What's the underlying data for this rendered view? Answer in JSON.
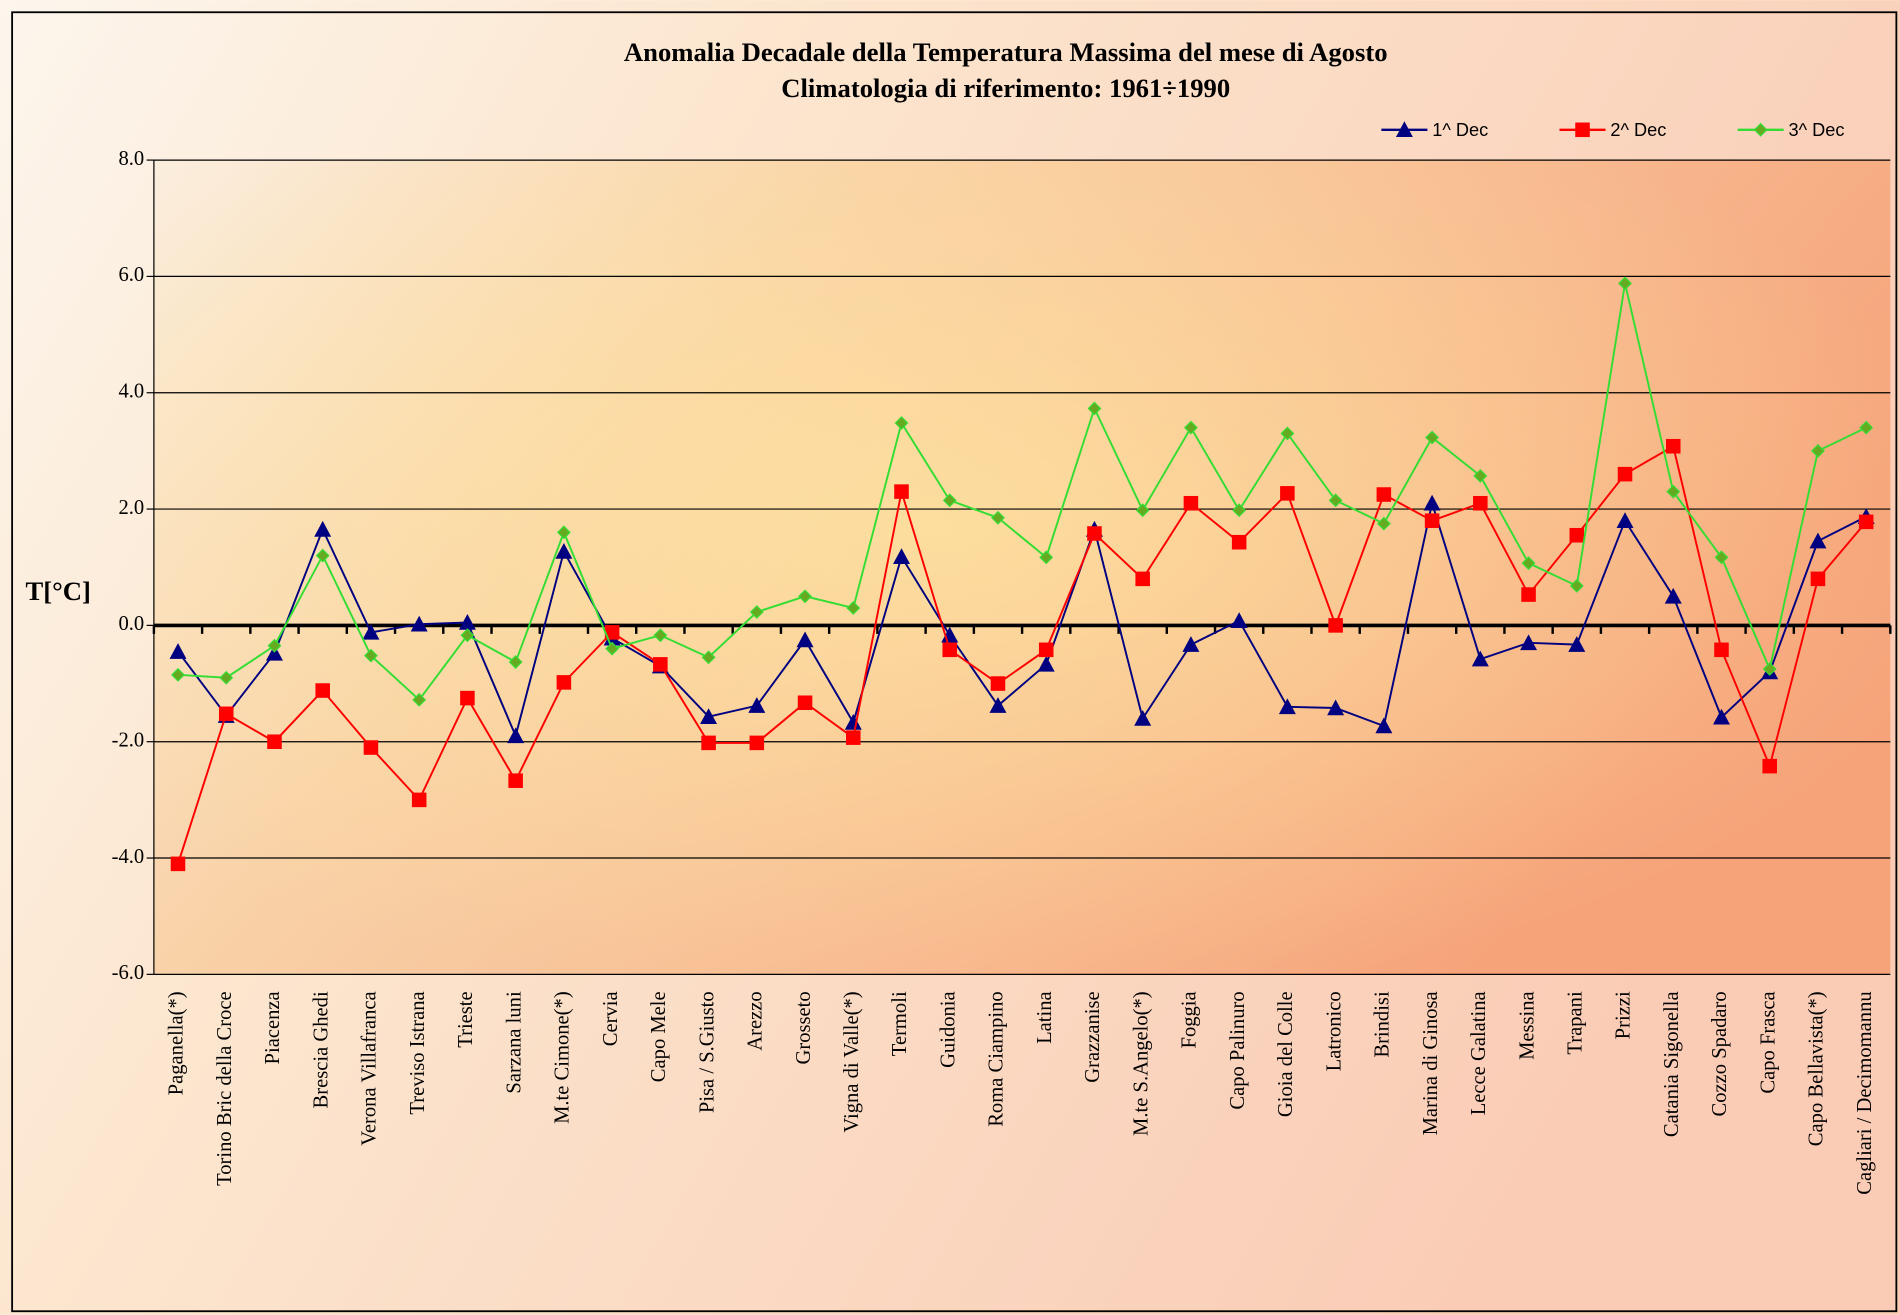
{
  "chart_data": {
    "type": "line",
    "title": "Anomalia Decadale della Temperatura Massima del mese di Agosto",
    "subtitle": "Climatologia di riferimento: 1961÷1990",
    "y_label": "T[°C]",
    "categories": [
      "Paganella(*)",
      "Torino Bric della Croce",
      "Piacenza",
      "Brescia Ghedi",
      "Verona Villafranca",
      "Treviso Istrana",
      "Trieste",
      "Sarzana luni",
      "M.te Cimone(*)",
      "Cervia",
      "Capo Mele",
      "Pisa / S.Giusto",
      "Arezzo",
      "Grosseto",
      "Vigna di Valle(*)",
      "Termoli",
      "Guidonia",
      "Roma Ciampino",
      "Latina",
      "Grazzanise",
      "M.te S.Angelo(*)",
      "Foggia",
      "Capo Palinuro",
      "Gioia del Colle",
      "Latronico",
      "Brindisi",
      "Marina di Ginosa",
      "Lecce Galatina",
      "Messina",
      "Trapani",
      "Prizzi",
      "Catania Sigonella",
      "Cozzo Spadaro",
      "Capo Frasca",
      "Capo Bellavista(*)",
      "Cagliari / Decimomannu"
    ],
    "series": [
      {
        "name": "1^ Dec",
        "color": "#000080",
        "marker": "triangle",
        "values": [
          -0.45,
          -1.55,
          -0.48,
          1.65,
          -0.12,
          0.02,
          0.05,
          -1.9,
          1.27,
          -0.22,
          -0.7,
          -1.57,
          -1.38,
          -0.25,
          -1.67,
          1.18,
          -0.17,
          -1.38,
          -0.67,
          1.65,
          -1.6,
          -0.33,
          0.08,
          -1.4,
          -1.42,
          -1.73,
          2.1,
          -0.58,
          -0.3,
          -0.33,
          1.8,
          0.5,
          -1.58,
          -0.8,
          1.45,
          1.87
        ]
      },
      {
        "name": "2^ Dec",
        "color": "#ff0000",
        "marker": "square",
        "values": [
          -4.1,
          -1.52,
          -2.0,
          -1.12,
          -2.1,
          -3.0,
          -1.25,
          -2.67,
          -0.98,
          -0.12,
          -0.67,
          -2.02,
          -2.02,
          -1.33,
          -1.93,
          2.3,
          -0.42,
          -1.0,
          -0.42,
          1.58,
          0.8,
          2.1,
          1.43,
          2.27,
          0.0,
          2.25,
          1.8,
          2.1,
          0.53,
          1.55,
          2.6,
          3.08,
          -0.42,
          -2.42,
          0.8,
          1.78
        ]
      },
      {
        "name": "3^ Dec",
        "color": "#33dd33",
        "marker": "diamond",
        "values": [
          -0.85,
          -0.9,
          -0.35,
          1.2,
          -0.52,
          -1.28,
          -0.17,
          -0.63,
          1.6,
          -0.4,
          -0.17,
          -0.55,
          0.23,
          0.5,
          0.3,
          3.48,
          2.15,
          1.85,
          1.17,
          3.73,
          1.98,
          3.4,
          1.98,
          3.3,
          2.15,
          1.75,
          3.23,
          2.57,
          1.07,
          0.68,
          5.88,
          2.3,
          1.17,
          -0.75,
          3.0,
          3.4
        ]
      }
    ],
    "ylim": [
      -6,
      8
    ],
    "yticks": [
      {
        "value": -6,
        "label": "-6.0"
      },
      {
        "value": -4,
        "label": "-4.0"
      },
      {
        "value": -2,
        "label": "-2.0"
      },
      {
        "value": 0,
        "label": "0.0"
      },
      {
        "value": 2,
        "label": "2.0"
      },
      {
        "value": 4,
        "label": "4.0"
      },
      {
        "value": 6,
        "label": "6.0"
      },
      {
        "value": 8,
        "label": "8.0"
      }
    ],
    "grid": true,
    "legend": "top-right"
  }
}
